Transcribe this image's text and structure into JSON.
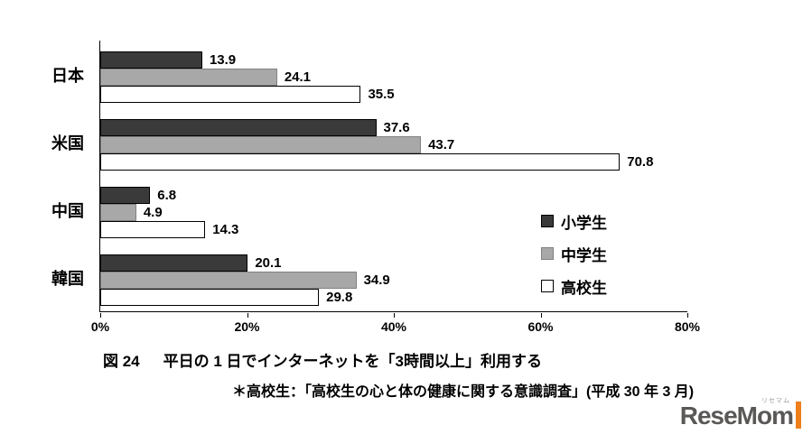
{
  "chart_data": {
    "type": "bar",
    "orientation": "horizontal",
    "title": "平日の 1 日でインターネットを「3時間以上」利用する",
    "categories": [
      "日本",
      "米国",
      "中国",
      "韓国"
    ],
    "series": [
      {
        "name": "小学生",
        "fill": "#3a3a3a",
        "border": "#000000",
        "values": [
          13.9,
          37.6,
          6.8,
          20.1
        ]
      },
      {
        "name": "中学生",
        "fill": "#a8a8a8",
        "border": "#808080",
        "values": [
          24.1,
          43.7,
          4.9,
          34.9
        ]
      },
      {
        "name": "高校生",
        "fill": "#ffffff",
        "border": "#000000",
        "values": [
          35.5,
          70.8,
          14.3,
          29.8
        ]
      }
    ],
    "xlim": [
      0,
      80
    ],
    "x_ticks": [
      "0%",
      "20%",
      "40%",
      "60%",
      "80%"
    ],
    "grid": false,
    "legend_position": "right-middle",
    "value_labels": true
  },
  "caption": {
    "label": "図 24",
    "text": "平日の 1 日でインターネットを「3時間以上」利用する"
  },
  "footnote": {
    "text": "＊高校生：「高校生の心と体の健康に関する意識調査」(平成 30 年 3 月)"
  },
  "logo": {
    "text": "ReseMom",
    "sub": "リセマム",
    "text_color": "#5a5857",
    "accent_color": "#ee7f1a"
  }
}
